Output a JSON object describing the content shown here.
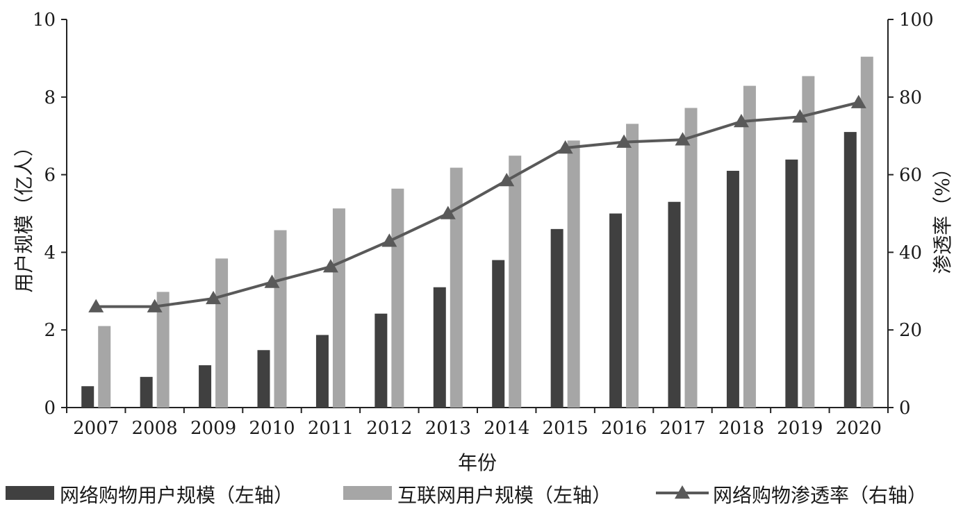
{
  "chart_data": {
    "type": "bar",
    "categories": [
      "2007",
      "2008",
      "2009",
      "2010",
      "2011",
      "2012",
      "2013",
      "2014",
      "2015",
      "2016",
      "2017",
      "2018",
      "2019",
      "2020"
    ],
    "series": [
      {
        "name": "网络购物用户规模（左轴）",
        "type": "bar",
        "axis": "left",
        "color": "#404040",
        "values": [
          0.55,
          0.79,
          1.09,
          1.48,
          1.87,
          2.42,
          3.1,
          3.8,
          4.6,
          5.0,
          5.3,
          6.1,
          6.39,
          7.1
        ]
      },
      {
        "name": "互联网用户规模（左轴）",
        "type": "bar",
        "axis": "left",
        "color": "#a6a6a6",
        "values": [
          2.1,
          2.98,
          3.84,
          4.57,
          5.13,
          5.64,
          6.18,
          6.49,
          6.88,
          7.31,
          7.72,
          8.29,
          8.54,
          9.04
        ]
      },
      {
        "name": "网络购物渗透率（右轴）",
        "type": "line",
        "axis": "right",
        "marker": "triangle",
        "color": "#595959",
        "values": [
          26.0,
          26.0,
          28.1,
          32.3,
          36.3,
          42.9,
          50.0,
          58.5,
          66.9,
          68.4,
          69.0,
          73.7,
          74.9,
          78.6
        ]
      }
    ],
    "xlabel": "年份",
    "ylabel_left": "用户规模（亿人）",
    "ylabel_right": "渗透率（%）",
    "y_left": {
      "min": 0,
      "max": 10,
      "ticks": [
        "0",
        "2",
        "4",
        "6",
        "8",
        "10"
      ]
    },
    "y_right": {
      "min": 0,
      "max": 100,
      "ticks": [
        "0",
        "20",
        "40",
        "60",
        "80",
        "100"
      ]
    },
    "grid": false,
    "legend": "bottom"
  }
}
